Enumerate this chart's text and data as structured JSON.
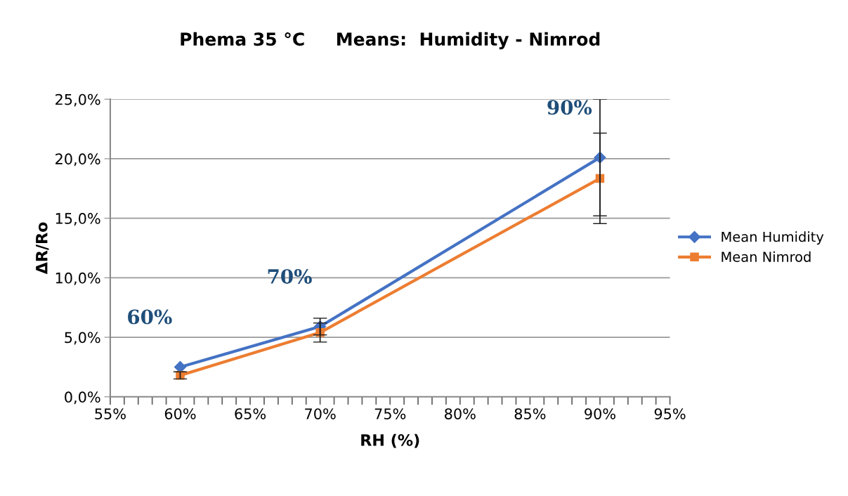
{
  "chart_data": {
    "type": "line",
    "title": "Phema 35 °C     Means:  Humidity - Nimrod",
    "xlabel": "RH (%)",
    "ylabel": "ΔR/Ro",
    "x": [
      60,
      70,
      90
    ],
    "series": [
      {
        "name": "Mean Humidity",
        "color": "#4472c4",
        "marker": "diamond",
        "values": [
          2.5,
          5.9,
          20.1
        ],
        "errors": [
          null,
          0.7,
          4.9
        ]
      },
      {
        "name": "Mean Nimrod",
        "color": "#ed7d31",
        "marker": "square",
        "values": [
          1.8,
          5.4,
          18.35
        ],
        "errors": [
          0.3,
          0.8,
          3.8
        ]
      }
    ],
    "xlim": [
      55,
      95
    ],
    "xticks": [
      {
        "value": 55,
        "label": "55%"
      },
      {
        "value": 56,
        "label": null
      },
      {
        "value": 57,
        "label": null
      },
      {
        "value": 58,
        "label": null
      },
      {
        "value": 59,
        "label": null
      },
      {
        "value": 60,
        "label": "60%"
      },
      {
        "value": 61,
        "label": null
      },
      {
        "value": 62,
        "label": null
      },
      {
        "value": 63,
        "label": null
      },
      {
        "value": 64,
        "label": null
      },
      {
        "value": 65,
        "label": "65%"
      },
      {
        "value": 66,
        "label": null
      },
      {
        "value": 67,
        "label": null
      },
      {
        "value": 68,
        "label": null
      },
      {
        "value": 69,
        "label": null
      },
      {
        "value": 70,
        "label": "70%"
      },
      {
        "value": 71,
        "label": null
      },
      {
        "value": 72,
        "label": null
      },
      {
        "value": 73,
        "label": null
      },
      {
        "value": 74,
        "label": null
      },
      {
        "value": 75,
        "label": "75%"
      },
      {
        "value": 76,
        "label": null
      },
      {
        "value": 77,
        "label": null
      },
      {
        "value": 78,
        "label": null
      },
      {
        "value": 79,
        "label": null
      },
      {
        "value": 80,
        "label": "80%"
      },
      {
        "value": 81,
        "label": null
      },
      {
        "value": 82,
        "label": null
      },
      {
        "value": 83,
        "label": null
      },
      {
        "value": 84,
        "label": null
      },
      {
        "value": 85,
        "label": "85%"
      },
      {
        "value": 86,
        "label": null
      },
      {
        "value": 87,
        "label": null
      },
      {
        "value": 88,
        "label": null
      },
      {
        "value": 89,
        "label": null
      },
      {
        "value": 90,
        "label": "90%"
      },
      {
        "value": 91,
        "label": null
      },
      {
        "value": 92,
        "label": null
      },
      {
        "value": 93,
        "label": null
      },
      {
        "value": 94,
        "label": null
      },
      {
        "value": 95,
        "label": "95%"
      }
    ],
    "ylim": [
      0,
      25
    ],
    "yticks": [
      {
        "value": 0,
        "label": "0,0%"
      },
      {
        "value": 5,
        "label": "5,0%"
      },
      {
        "value": 10,
        "label": "10,0%"
      },
      {
        "value": 15,
        "label": "15,0%"
      },
      {
        "value": 20,
        "label": "20,0%"
      },
      {
        "value": 25,
        "label": "25,0%"
      }
    ],
    "grid": "y",
    "legend": "right",
    "line_style": "solid",
    "annotations": [
      {
        "text": "60%",
        "x": 60,
        "y": 2.5
      },
      {
        "text": "70%",
        "x": 70,
        "y": 5.9
      },
      {
        "text": "90%",
        "x": 90,
        "y": 20.1
      }
    ]
  }
}
